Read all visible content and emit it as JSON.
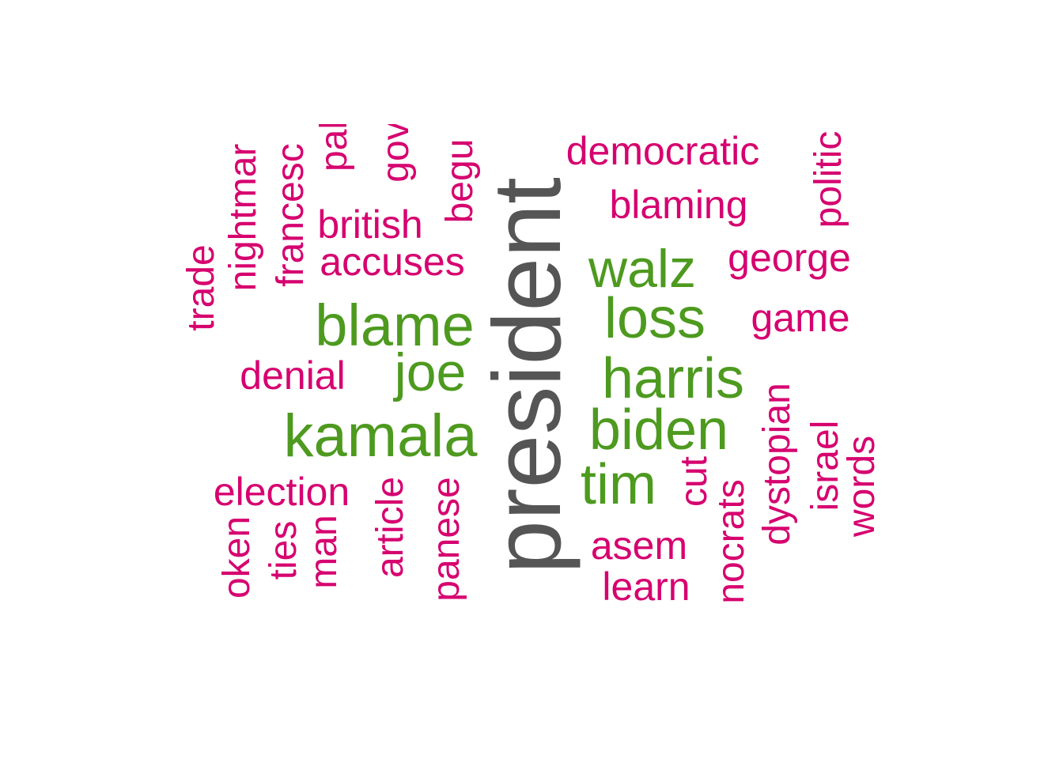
{
  "word_cloud": {
    "colors": {
      "highest_frequency": "#555555",
      "high_frequency": "#4d9a1f",
      "low_frequency": "#d6006f"
    },
    "words": {
      "president": "president",
      "kamala": "kamala",
      "blame": "blame",
      "joe": "joe",
      "walz": "walz",
      "loss": "loss",
      "harris": "harris",
      "biden": "biden",
      "tim": "tim",
      "democratic": "democratic",
      "blaming": "blaming",
      "george": "george",
      "game": "game",
      "british": "british",
      "accuses": "accuses",
      "denial": "denial",
      "election": "election",
      "asem": "asem",
      "learn": "learn",
      "trade": "trade",
      "nightmare": "nightmar",
      "francesca": "francesc",
      "pal": "pal",
      "gov": "gov",
      "begu": "begu",
      "politic": "politic",
      "dystopian": "dystopian",
      "israel": "israel",
      "words": "words",
      "cut": "cut",
      "democrats": "nocrats",
      "article": "article",
      "japanese": "panese",
      "man": "man",
      "ties": "ties",
      "spoken": "oken"
    }
  }
}
